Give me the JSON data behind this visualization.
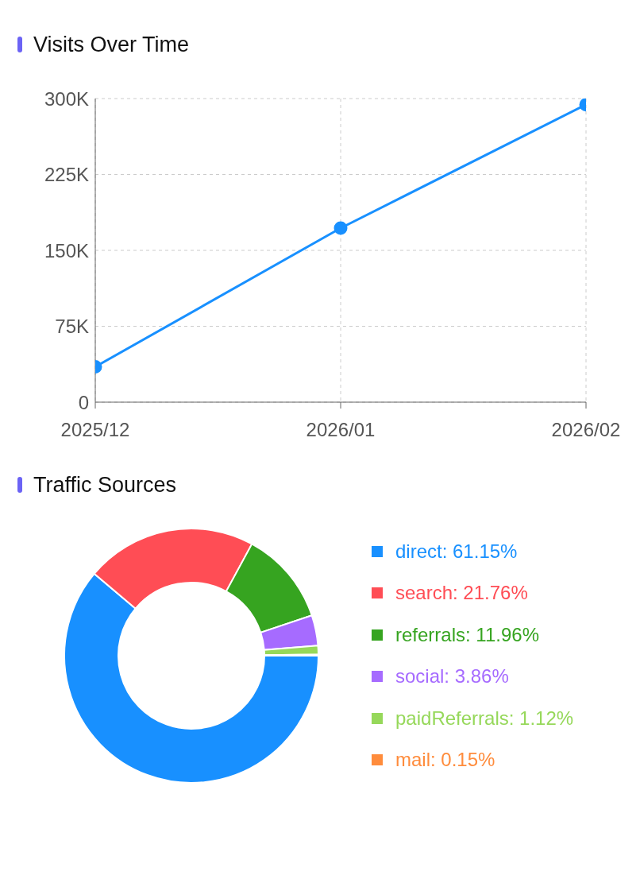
{
  "chart_data": [
    {
      "type": "line",
      "title": "Visits Over Time",
      "x": [
        "2025-12",
        "2026-01",
        "2026-02"
      ],
      "series": [
        {
          "color": "#1890ff",
          "values": [
            35000,
            172000,
            294000
          ]
        }
      ],
      "xlim": [
        "2025-12",
        "2026-02"
      ],
      "xticks": [
        {
          "value": "2025-12",
          "label": "2025/12"
        },
        {
          "value": "2026-01",
          "label": "2026/01"
        },
        {
          "value": "2026-02",
          "label": "2026/02"
        }
      ],
      "ylim": [
        0,
        300000
      ],
      "yticks": [
        {
          "value": 0,
          "label": "0"
        },
        {
          "value": 75000,
          "label": "75K"
        },
        {
          "value": 150000,
          "label": "150K"
        },
        {
          "value": 225000,
          "label": "225K"
        },
        {
          "value": 300000,
          "label": "300K"
        }
      ],
      "grid": true,
      "marker": "circle"
    },
    {
      "type": "donut",
      "title": "Traffic Sources",
      "categories": [
        "direct",
        "search",
        "referrals",
        "social",
        "paidReferrals",
        "mail"
      ],
      "values": [
        61.15,
        21.76,
        11.96,
        3.86,
        1.12,
        0.15
      ],
      "value_labels": [
        "61.15%",
        "21.76%",
        "11.96%",
        "3.86%",
        "1.12%",
        "0.15%"
      ],
      "colors": [
        "#1890ff",
        "#ff4d55",
        "#36a420",
        "#a66bff",
        "#96d85a",
        "#ff8c3c"
      ],
      "legend": "right"
    }
  ]
}
